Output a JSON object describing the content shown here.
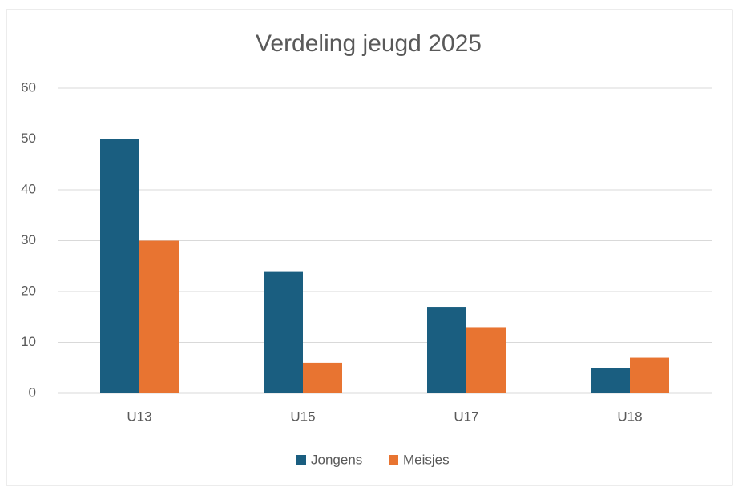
{
  "chart_data": {
    "type": "bar",
    "title": "Verdeling jeugd 2025",
    "categories": [
      "U13",
      "U15",
      "U17",
      "U18"
    ],
    "series": [
      {
        "name": "Jongens",
        "color": "#1a5e80",
        "values": [
          50,
          24,
          17,
          5
        ]
      },
      {
        "name": "Meisjes",
        "color": "#e87431",
        "values": [
          30,
          6,
          13,
          7
        ]
      }
    ],
    "ylim": [
      0,
      60
    ],
    "yticks": [
      0,
      10,
      20,
      30,
      40,
      50,
      60
    ],
    "grid": true,
    "legend": "bottom"
  }
}
